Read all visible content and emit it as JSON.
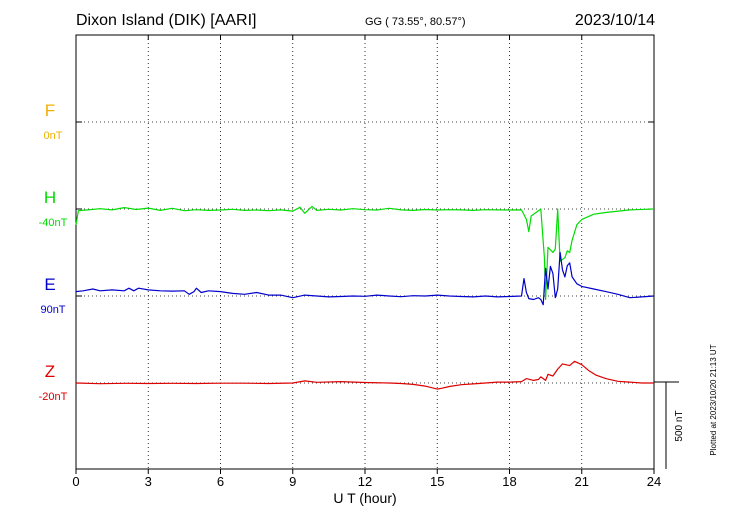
{
  "header": {
    "station": "Dixon Island (DIK)  [AARI]",
    "coords": "GG ( 73.55°,  80.57°)",
    "date": "2023/10/14"
  },
  "scale_label": "500 nT",
  "plotted_note": "Plotted at 2023/10/20 21:13 UT",
  "colors": {
    "F": "#f0b000",
    "H": "#00dd00",
    "E": "#0000cc",
    "Z": "#dd0000"
  },
  "chart_data": {
    "type": "line",
    "title": "",
    "xlabel": "U T (hour)",
    "ylabel": "",
    "xlim": [
      0,
      24
    ],
    "xticks": [
      "0",
      "3",
      "6",
      "9",
      "12",
      "15",
      "18",
      "21",
      "24"
    ],
    "scale_nT": 500,
    "series": [
      {
        "name": "F",
        "baseline_label": "0nT",
        "baseline_slot": 0,
        "values": []
      },
      {
        "name": "H",
        "baseline_label": "-40nT",
        "baseline_slot": 1,
        "values": [
          [
            0,
            -90
          ],
          [
            0.1,
            -10
          ],
          [
            0.5,
            -5
          ],
          [
            1,
            2
          ],
          [
            1.5,
            -5
          ],
          [
            2,
            8
          ],
          [
            2.5,
            -3
          ],
          [
            3,
            5
          ],
          [
            3.5,
            -8
          ],
          [
            4,
            4
          ],
          [
            4.5,
            -10
          ],
          [
            5,
            -4
          ],
          [
            5.5,
            -8
          ],
          [
            6,
            -6
          ],
          [
            6.5,
            -2
          ],
          [
            7,
            -8
          ],
          [
            7.5,
            -6
          ],
          [
            8,
            -10
          ],
          [
            8.5,
            -5
          ],
          [
            9,
            -12
          ],
          [
            9.3,
            10
          ],
          [
            9.5,
            -25
          ],
          [
            9.8,
            15
          ],
          [
            10,
            -8
          ],
          [
            10.5,
            -2
          ],
          [
            11,
            -6
          ],
          [
            11.5,
            2
          ],
          [
            12,
            -4
          ],
          [
            12.5,
            -6
          ],
          [
            13,
            4
          ],
          [
            13.5,
            -5
          ],
          [
            14,
            -8
          ],
          [
            14.5,
            -3
          ],
          [
            15,
            -6
          ],
          [
            15.5,
            -4
          ],
          [
            16,
            -5
          ],
          [
            16.5,
            -8
          ],
          [
            17,
            -4
          ],
          [
            17.5,
            -5
          ],
          [
            18,
            -6
          ],
          [
            18.5,
            -5
          ],
          [
            18.7,
            -60
          ],
          [
            18.8,
            -130
          ],
          [
            18.9,
            -40
          ],
          [
            19.1,
            -20
          ],
          [
            19.3,
            0
          ],
          [
            19.45,
            -280
          ],
          [
            19.5,
            -520
          ],
          [
            19.6,
            -220
          ],
          [
            19.8,
            -250
          ],
          [
            19.9,
            -230
          ],
          [
            20,
            0
          ],
          [
            20.1,
            -300
          ],
          [
            20.3,
            -280
          ],
          [
            20.4,
            -240
          ],
          [
            20.5,
            -250
          ],
          [
            20.6,
            -180
          ],
          [
            20.8,
            -90
          ],
          [
            21,
            -60
          ],
          [
            21.5,
            -30
          ],
          [
            22,
            -20
          ],
          [
            23,
            -5
          ],
          [
            24,
            0
          ]
        ]
      },
      {
        "name": "E",
        "baseline_label": "90nT",
        "baseline_slot": 2,
        "values": [
          [
            0,
            25
          ],
          [
            0.3,
            30
          ],
          [
            0.7,
            40
          ],
          [
            1,
            30
          ],
          [
            1.5,
            35
          ],
          [
            2,
            30
          ],
          [
            2.2,
            45
          ],
          [
            2.4,
            30
          ],
          [
            2.6,
            45
          ],
          [
            3,
            35
          ],
          [
            3.5,
            30
          ],
          [
            4,
            28
          ],
          [
            4.5,
            30
          ],
          [
            4.7,
            10
          ],
          [
            4.9,
            25
          ],
          [
            5,
            45
          ],
          [
            5.2,
            20
          ],
          [
            5.5,
            30
          ],
          [
            6,
            25
          ],
          [
            6.5,
            15
          ],
          [
            7,
            10
          ],
          [
            7.5,
            20
          ],
          [
            8,
            5
          ],
          [
            8.5,
            5
          ],
          [
            9,
            -10
          ],
          [
            9.5,
            5
          ],
          [
            10,
            0
          ],
          [
            10.5,
            -5
          ],
          [
            11,
            -3
          ],
          [
            11.5,
            0
          ],
          [
            12,
            -2
          ],
          [
            12.5,
            5
          ],
          [
            13,
            0
          ],
          [
            13.5,
            -4
          ],
          [
            14,
            2
          ],
          [
            14.5,
            0
          ],
          [
            15,
            5
          ],
          [
            15.5,
            0
          ],
          [
            16,
            -3
          ],
          [
            16.5,
            -5
          ],
          [
            17,
            0
          ],
          [
            17.5,
            -5
          ],
          [
            18,
            -3
          ],
          [
            18.5,
            0
          ],
          [
            18.6,
            100
          ],
          [
            18.7,
            20
          ],
          [
            18.8,
            -15
          ],
          [
            19,
            -20
          ],
          [
            19.2,
            -10
          ],
          [
            19.3,
            -20
          ],
          [
            19.4,
            -50
          ],
          [
            19.5,
            160
          ],
          [
            19.6,
            40
          ],
          [
            19.7,
            170
          ],
          [
            19.8,
            130
          ],
          [
            19.9,
            -10
          ],
          [
            20,
            40
          ],
          [
            20.1,
            250
          ],
          [
            20.2,
            150
          ],
          [
            20.3,
            110
          ],
          [
            20.4,
            175
          ],
          [
            20.5,
            190
          ],
          [
            20.6,
            110
          ],
          [
            20.8,
            70
          ],
          [
            21,
            55
          ],
          [
            21.5,
            40
          ],
          [
            22,
            25
          ],
          [
            22.5,
            10
          ],
          [
            23,
            -10
          ],
          [
            23.5,
            -5
          ],
          [
            24,
            0
          ]
        ]
      },
      {
        "name": "Z",
        "baseline_label": "-20nT",
        "baseline_slot": 3,
        "values": [
          [
            0,
            0
          ],
          [
            1,
            -4
          ],
          [
            2,
            -2
          ],
          [
            3,
            -3
          ],
          [
            4,
            -2
          ],
          [
            5,
            -3
          ],
          [
            6,
            -1
          ],
          [
            7,
            -1
          ],
          [
            8,
            -3
          ],
          [
            9,
            0
          ],
          [
            9.5,
            12
          ],
          [
            10,
            4
          ],
          [
            11,
            8
          ],
          [
            12,
            3
          ],
          [
            13,
            0
          ],
          [
            13.5,
            -3
          ],
          [
            14,
            -8
          ],
          [
            14.5,
            -18
          ],
          [
            15,
            -35
          ],
          [
            15.2,
            -30
          ],
          [
            15.5,
            -20
          ],
          [
            16,
            -10
          ],
          [
            16.5,
            -5
          ],
          [
            17,
            0
          ],
          [
            17.5,
            5
          ],
          [
            18,
            5
          ],
          [
            18.5,
            8
          ],
          [
            18.7,
            25
          ],
          [
            19,
            15
          ],
          [
            19.2,
            20
          ],
          [
            19.3,
            35
          ],
          [
            19.5,
            15
          ],
          [
            19.6,
            50
          ],
          [
            19.8,
            40
          ],
          [
            20,
            80
          ],
          [
            20.2,
            110
          ],
          [
            20.5,
            100
          ],
          [
            20.7,
            125
          ],
          [
            21,
            105
          ],
          [
            21.3,
            70
          ],
          [
            21.6,
            45
          ],
          [
            22,
            25
          ],
          [
            22.5,
            10
          ],
          [
            23,
            5
          ],
          [
            23.5,
            0
          ],
          [
            24,
            0
          ]
        ]
      }
    ]
  }
}
